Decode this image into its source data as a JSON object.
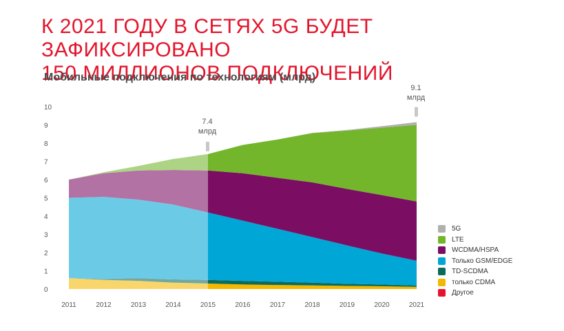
{
  "headline": {
    "line1": "К 2021 ГОДУ В СЕТЯХ 5G БУДЕТ ЗАФИКСИРОВАНО",
    "line2": "150 МИЛЛИОНОВ ПОДКЛЮЧЕНИЙ"
  },
  "chart_data": {
    "type": "area",
    "stacked": true,
    "title": "Мобильные подключения по технологиям (млрд)",
    "x": [
      "2011",
      "2012",
      "2013",
      "2014",
      "2015",
      "2016",
      "2017",
      "2018",
      "2019",
      "2020",
      "2021"
    ],
    "ylim": [
      0,
      10
    ],
    "yticks": [
      "0",
      "1",
      "2",
      "3",
      "4",
      "5",
      "6",
      "7",
      "8",
      "9",
      "10"
    ],
    "grid": false,
    "legend_position": "bottom-right",
    "historical_until": "2015",
    "series": [
      {
        "name": "Другое",
        "color": "#e3142b",
        "values": [
          0,
          0,
          0,
          0,
          0,
          0,
          0,
          0,
          0,
          0,
          0
        ]
      },
      {
        "name": "только CDMA",
        "color": "#f5b800",
        "values": [
          0.6,
          0.5,
          0.45,
          0.35,
          0.3,
          0.25,
          0.22,
          0.2,
          0.17,
          0.15,
          0.12
        ]
      },
      {
        "name": "TD-SCDMA",
        "color": "#0b6b5c",
        "values": [
          0,
          0.05,
          0.15,
          0.18,
          0.2,
          0.2,
          0.18,
          0.15,
          0.12,
          0.1,
          0.08
        ]
      },
      {
        "name": "Только GSM/EDGE",
        "color": "#00a6d6",
        "values": [
          4.4,
          4.5,
          4.3,
          4.1,
          3.7,
          3.3,
          2.9,
          2.5,
          2.1,
          1.7,
          1.35
        ]
      },
      {
        "name": "WCDMA/HSPA",
        "color": "#7b0e62",
        "values": [
          1.0,
          1.3,
          1.6,
          1.9,
          2.3,
          2.6,
          2.8,
          3.0,
          3.1,
          3.2,
          3.25
        ]
      },
      {
        "name": "LTE",
        "color": "#73b62b",
        "values": [
          0,
          0.05,
          0.25,
          0.6,
          0.9,
          1.55,
          2.1,
          2.7,
          3.2,
          3.7,
          4.2
        ]
      },
      {
        "name": "5G",
        "color": "#b0b0b0",
        "values": [
          0,
          0,
          0,
          0,
          0,
          0,
          0,
          0.01,
          0.03,
          0.08,
          0.15
        ]
      }
    ],
    "annotations": [
      {
        "x": "2015",
        "value": "7.4",
        "unit": "млрд"
      },
      {
        "x": "2021",
        "value": "9.1",
        "unit": "млрд"
      }
    ]
  }
}
